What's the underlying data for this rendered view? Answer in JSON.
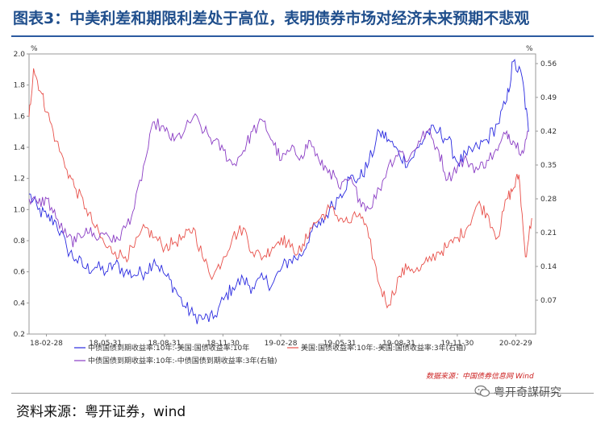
{
  "page": {
    "title": "图表3：中美利差和期限利差处于高位，表明债券市场对经济未来预期不悲观",
    "source": "资料来源：粤开证券，wind",
    "watermark": "粤开奇謀研究",
    "chart_credit": "数据来源：中国债券信息网 Wind"
  },
  "chart_data": {
    "type": "line",
    "title": "",
    "left_axis": {
      "unit": "%",
      "min": 0.2,
      "max": 2.0,
      "ticks": [
        "0.2",
        "0.4",
        "0.6",
        "0.8",
        "1.0",
        "1.2",
        "1.4",
        "1.6",
        "1.8",
        "2.0"
      ]
    },
    "right_axis": {
      "unit": "%",
      "min": 0.0,
      "max": 0.58,
      "ticks": [
        "0.07",
        "0.14",
        "0.21",
        "0.28",
        "0.35",
        "0.42",
        "0.49",
        "0.56"
      ]
    },
    "x_axis": {
      "start": "2018-02-01",
      "end": "2020-03-31",
      "ticks": [
        {
          "label": "18-02-28",
          "date": "2018-02-28"
        },
        {
          "label": "18-05-31",
          "date": "2018-05-31"
        },
        {
          "label": "18-08-31",
          "date": "2018-08-31"
        },
        {
          "label": "18-11-30",
          "date": "2018-11-30"
        },
        {
          "label": "19-02-28",
          "date": "2019-02-28"
        },
        {
          "label": "19-05-31",
          "date": "2019-05-31"
        },
        {
          "label": "19-08-31",
          "date": "2019-08-31"
        },
        {
          "label": "19-11-30",
          "date": "2019-11-30"
        },
        {
          "label": "20-02-29",
          "date": "2020-02-29"
        }
      ]
    },
    "series": [
      {
        "name": "中债国债到期收益率:10年:-美国:国债收益率:10年",
        "color": "#2a2ae0",
        "axis": "left",
        "points": [
          [
            "2018-02-01",
            1.1
          ],
          [
            "2018-02-15",
            1.0
          ],
          [
            "2018-03-01",
            0.95
          ],
          [
            "2018-03-15",
            0.92
          ],
          [
            "2018-04-01",
            0.75
          ],
          [
            "2018-04-15",
            0.68
          ],
          [
            "2018-05-01",
            0.62
          ],
          [
            "2018-05-15",
            0.63
          ],
          [
            "2018-06-01",
            0.6
          ],
          [
            "2018-06-15",
            0.65
          ],
          [
            "2018-07-01",
            0.6
          ],
          [
            "2018-07-15",
            0.58
          ],
          [
            "2018-08-01",
            0.6
          ],
          [
            "2018-08-15",
            0.68
          ],
          [
            "2018-09-01",
            0.58
          ],
          [
            "2018-09-15",
            0.5
          ],
          [
            "2018-10-01",
            0.38
          ],
          [
            "2018-10-15",
            0.32
          ],
          [
            "2018-11-01",
            0.3
          ],
          [
            "2018-11-15",
            0.3
          ],
          [
            "2018-12-01",
            0.42
          ],
          [
            "2018-12-15",
            0.5
          ],
          [
            "2019-01-01",
            0.55
          ],
          [
            "2019-01-15",
            0.5
          ],
          [
            "2019-02-01",
            0.55
          ],
          [
            "2019-02-15",
            0.52
          ],
          [
            "2019-03-01",
            0.62
          ],
          [
            "2019-03-15",
            0.68
          ],
          [
            "2019-04-01",
            0.7
          ],
          [
            "2019-04-15",
            0.85
          ],
          [
            "2019-05-01",
            0.9
          ],
          [
            "2019-05-15",
            1.0
          ],
          [
            "2019-06-01",
            1.1
          ],
          [
            "2019-06-15",
            1.2
          ],
          [
            "2019-07-01",
            1.2
          ],
          [
            "2019-07-15",
            1.3
          ],
          [
            "2019-08-01",
            1.5
          ],
          [
            "2019-08-15",
            1.45
          ],
          [
            "2019-09-01",
            1.35
          ],
          [
            "2019-09-15",
            1.3
          ],
          [
            "2019-10-01",
            1.4
          ],
          [
            "2019-10-15",
            1.5
          ],
          [
            "2019-11-01",
            1.5
          ],
          [
            "2019-11-15",
            1.45
          ],
          [
            "2019-12-01",
            1.3
          ],
          [
            "2019-12-15",
            1.35
          ],
          [
            "2020-01-01",
            1.4
          ],
          [
            "2020-01-15",
            1.45
          ],
          [
            "2020-02-01",
            1.55
          ],
          [
            "2020-02-15",
            1.7
          ],
          [
            "2020-02-25",
            1.95
          ],
          [
            "2020-03-10",
            1.85
          ],
          [
            "2020-03-20",
            1.5
          ]
        ]
      },
      {
        "name": "美国:国债收益率:10年:-美国:国债收益率:3年(右轴)",
        "color": "#e8504a",
        "axis": "right",
        "points": [
          [
            "2018-02-01",
            0.45
          ],
          [
            "2018-02-08",
            0.55
          ],
          [
            "2018-02-20",
            0.5
          ],
          [
            "2018-03-01",
            0.46
          ],
          [
            "2018-03-15",
            0.4
          ],
          [
            "2018-04-01",
            0.34
          ],
          [
            "2018-04-15",
            0.3
          ],
          [
            "2018-05-01",
            0.26
          ],
          [
            "2018-05-15",
            0.22
          ],
          [
            "2018-06-01",
            0.18
          ],
          [
            "2018-06-15",
            0.17
          ],
          [
            "2018-07-01",
            0.16
          ],
          [
            "2018-07-15",
            0.18
          ],
          [
            "2018-08-01",
            0.22
          ],
          [
            "2018-08-15",
            0.2
          ],
          [
            "2018-09-01",
            0.18
          ],
          [
            "2018-09-15",
            0.19
          ],
          [
            "2018-10-01",
            0.2
          ],
          [
            "2018-10-15",
            0.22
          ],
          [
            "2018-11-01",
            0.15
          ],
          [
            "2018-11-15",
            0.12
          ],
          [
            "2018-12-01",
            0.16
          ],
          [
            "2018-12-15",
            0.2
          ],
          [
            "2019-01-01",
            0.22
          ],
          [
            "2019-01-15",
            0.17
          ],
          [
            "2019-02-01",
            0.16
          ],
          [
            "2019-02-15",
            0.18
          ],
          [
            "2019-03-01",
            0.2
          ],
          [
            "2019-03-15",
            0.18
          ],
          [
            "2019-04-01",
            0.17
          ],
          [
            "2019-04-15",
            0.22
          ],
          [
            "2019-05-01",
            0.24
          ],
          [
            "2019-05-15",
            0.26
          ],
          [
            "2019-06-01",
            0.24
          ],
          [
            "2019-06-15",
            0.23
          ],
          [
            "2019-07-01",
            0.25
          ],
          [
            "2019-07-15",
            0.2
          ],
          [
            "2019-08-01",
            0.1
          ],
          [
            "2019-08-15",
            0.06
          ],
          [
            "2019-09-01",
            0.12
          ],
          [
            "2019-09-15",
            0.14
          ],
          [
            "2019-10-01",
            0.13
          ],
          [
            "2019-10-15",
            0.15
          ],
          [
            "2019-11-01",
            0.17
          ],
          [
            "2019-11-15",
            0.18
          ],
          [
            "2019-12-01",
            0.2
          ],
          [
            "2019-12-15",
            0.22
          ],
          [
            "2020-01-01",
            0.27
          ],
          [
            "2020-01-15",
            0.25
          ],
          [
            "2020-02-01",
            0.2
          ],
          [
            "2020-02-15",
            0.28
          ],
          [
            "2020-02-25",
            0.3
          ],
          [
            "2020-03-05",
            0.33
          ],
          [
            "2020-03-15",
            0.16
          ],
          [
            "2020-03-25",
            0.24
          ]
        ]
      },
      {
        "name": "中债国债到期收益率:10年:-中债国债到期收益率:3年(右轴)",
        "color": "#8a3cc4",
        "axis": "right",
        "points": [
          [
            "2018-02-01",
            0.28
          ],
          [
            "2018-02-15",
            0.27
          ],
          [
            "2018-03-01",
            0.28
          ],
          [
            "2018-03-15",
            0.24
          ],
          [
            "2018-04-01",
            0.2
          ],
          [
            "2018-04-15",
            0.19
          ],
          [
            "2018-05-01",
            0.22
          ],
          [
            "2018-05-15",
            0.2
          ],
          [
            "2018-06-01",
            0.21
          ],
          [
            "2018-06-15",
            0.19
          ],
          [
            "2018-07-01",
            0.22
          ],
          [
            "2018-07-15",
            0.26
          ],
          [
            "2018-08-01",
            0.36
          ],
          [
            "2018-08-15",
            0.44
          ],
          [
            "2018-09-01",
            0.42
          ],
          [
            "2018-09-15",
            0.4
          ],
          [
            "2018-10-01",
            0.42
          ],
          [
            "2018-10-15",
            0.45
          ],
          [
            "2018-11-01",
            0.42
          ],
          [
            "2018-11-15",
            0.4
          ],
          [
            "2018-12-01",
            0.38
          ],
          [
            "2018-12-15",
            0.35
          ],
          [
            "2019-01-01",
            0.38
          ],
          [
            "2019-01-15",
            0.42
          ],
          [
            "2019-02-01",
            0.44
          ],
          [
            "2019-02-15",
            0.4
          ],
          [
            "2019-03-01",
            0.36
          ],
          [
            "2019-03-15",
            0.38
          ],
          [
            "2019-04-01",
            0.37
          ],
          [
            "2019-04-15",
            0.4
          ],
          [
            "2019-05-01",
            0.35
          ],
          [
            "2019-05-15",
            0.34
          ],
          [
            "2019-06-01",
            0.3
          ],
          [
            "2019-06-15",
            0.32
          ],
          [
            "2019-07-01",
            0.28
          ],
          [
            "2019-07-15",
            0.26
          ],
          [
            "2019-08-01",
            0.3
          ],
          [
            "2019-08-15",
            0.35
          ],
          [
            "2019-09-01",
            0.38
          ],
          [
            "2019-09-15",
            0.36
          ],
          [
            "2019-10-01",
            0.4
          ],
          [
            "2019-10-15",
            0.42
          ],
          [
            "2019-11-01",
            0.38
          ],
          [
            "2019-11-15",
            0.32
          ],
          [
            "2019-12-01",
            0.35
          ],
          [
            "2019-12-15",
            0.36
          ],
          [
            "2020-01-01",
            0.34
          ],
          [
            "2020-01-15",
            0.36
          ],
          [
            "2020-02-01",
            0.38
          ],
          [
            "2020-02-15",
            0.42
          ],
          [
            "2020-02-25",
            0.4
          ],
          [
            "2020-03-10",
            0.38
          ],
          [
            "2020-03-20",
            0.42
          ]
        ]
      }
    ],
    "legend": [
      {
        "label": "中债国债到期收益率:10年:-美国:国债收益率:10年",
        "color": "#2a2ae0"
      },
      {
        "label": "美国:国债收益率:10年:-美国:国债收益率:3年(右轴)",
        "color": "#e8504a"
      },
      {
        "label": "中债国债到期收益率:10年:-中债国债到期收益率:3年(右轴)",
        "color": "#8a3cc4"
      }
    ]
  }
}
